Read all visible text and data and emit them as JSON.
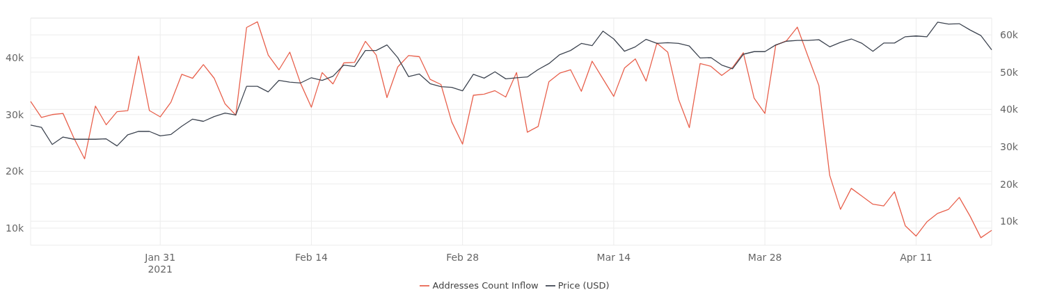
{
  "chart_data": {
    "type": "line",
    "x": [
      "2021-01-19",
      "2021-01-20",
      "2021-01-21",
      "2021-01-22",
      "2021-01-23",
      "2021-01-24",
      "2021-01-25",
      "2021-01-26",
      "2021-01-27",
      "2021-01-28",
      "2021-01-29",
      "2021-01-30",
      "2021-01-31",
      "2021-02-01",
      "2021-02-02",
      "2021-02-03",
      "2021-02-04",
      "2021-02-05",
      "2021-02-06",
      "2021-02-07",
      "2021-02-08",
      "2021-02-09",
      "2021-02-10",
      "2021-02-11",
      "2021-02-12",
      "2021-02-13",
      "2021-02-14",
      "2021-02-15",
      "2021-02-16",
      "2021-02-17",
      "2021-02-18",
      "2021-02-19",
      "2021-02-20",
      "2021-02-21",
      "2021-02-22",
      "2021-02-23",
      "2021-02-24",
      "2021-02-25",
      "2021-02-26",
      "2021-02-27",
      "2021-02-28",
      "2021-03-01",
      "2021-03-02",
      "2021-03-03",
      "2021-03-04",
      "2021-03-05",
      "2021-03-06",
      "2021-03-07",
      "2021-03-08",
      "2021-03-09",
      "2021-03-10",
      "2021-03-11",
      "2021-03-12",
      "2021-03-13",
      "2021-03-14",
      "2021-03-15",
      "2021-03-16",
      "2021-03-17",
      "2021-03-18",
      "2021-03-19",
      "2021-03-20",
      "2021-03-21",
      "2021-03-22",
      "2021-03-23",
      "2021-03-24",
      "2021-03-25",
      "2021-03-26",
      "2021-03-27",
      "2021-03-28",
      "2021-03-29",
      "2021-03-30",
      "2021-03-31",
      "2021-04-01",
      "2021-04-02",
      "2021-04-03",
      "2021-04-04",
      "2021-04-05",
      "2021-04-06",
      "2021-04-07",
      "2021-04-08",
      "2021-04-09",
      "2021-04-10",
      "2021-04-11",
      "2021-04-12",
      "2021-04-13",
      "2021-04-14",
      "2021-04-15",
      "2021-04-16",
      "2021-04-17",
      "2021-04-18"
    ],
    "series": [
      {
        "name": "Addresses Count Inflow",
        "color": "#e8604c",
        "values": [
          32300,
          29500,
          30000,
          30200,
          25900,
          22200,
          31500,
          28200,
          30500,
          30700,
          40300,
          30700,
          29600,
          32200,
          37100,
          36400,
          38800,
          36400,
          31900,
          29900,
          45350,
          46350,
          40500,
          37900,
          41000,
          35500,
          31300,
          37400,
          35400,
          39100,
          39200,
          42900,
          40500,
          33000,
          38400,
          40400,
          40200,
          36200,
          35300,
          28700,
          24800,
          33400,
          33600,
          34200,
          33100,
          37400,
          26900,
          27900,
          35800,
          37300,
          37900,
          34100,
          39400,
          36300,
          33200,
          38200,
          39800,
          35900,
          42600,
          41000,
          32700,
          27700,
          39000,
          38500,
          36900,
          38300,
          40900,
          32900,
          30200,
          42200,
          43000,
          45400,
          40200,
          35100,
          19300,
          13300,
          17000,
          15600,
          14200,
          13900,
          16400,
          10400,
          8600,
          11100,
          12600,
          13300,
          15400,
          12100,
          8300,
          9600
        ]
      },
      {
        "name": "Price (USD)",
        "color": "#3d4450",
        "axis": "y2",
        "values": [
          35800,
          35200,
          30600,
          32600,
          32000,
          32000,
          32000,
          32100,
          30200,
          33200,
          34100,
          34100,
          32900,
          33300,
          35500,
          37400,
          36800,
          38100,
          39000,
          38500,
          46200,
          46200,
          44700,
          47800,
          47300,
          47100,
          48500,
          47800,
          48900,
          51900,
          51500,
          55800,
          55800,
          57300,
          53900,
          48800,
          49500,
          46900,
          46100,
          45900,
          45000,
          49400,
          48400,
          50100,
          48200,
          48500,
          48700,
          50700,
          52300,
          54700,
          55800,
          57700,
          57100,
          61000,
          58900,
          55600,
          56800,
          58800,
          57700,
          57900,
          57700,
          57000,
          53800,
          53900,
          51900,
          50900,
          54800,
          55500,
          55500,
          57300,
          58300,
          58500,
          58500,
          58700,
          56800,
          58000,
          58900,
          57700,
          55600,
          57800,
          57800,
          59500,
          59700,
          59500,
          63400,
          62900,
          63000,
          61300,
          59800,
          56000
        ]
      }
    ],
    "xlim": [
      "2021-01-19",
      "2021-04-18"
    ],
    "xticks": [
      {
        "value": "2021-01-31",
        "label": "Jan 31\n2021"
      },
      {
        "value": "2021-02-14",
        "label": "Feb 14"
      },
      {
        "value": "2021-02-28",
        "label": "Feb 28"
      },
      {
        "value": "2021-03-14",
        "label": "Mar 14"
      },
      {
        "value": "2021-03-28",
        "label": "Mar 28"
      },
      {
        "value": "2021-04-11",
        "label": "Apr 11"
      }
    ],
    "ylim": [
      7000,
      47000
    ],
    "yticks": [
      {
        "value": 10000,
        "label": "10k"
      },
      {
        "value": 20000,
        "label": "20k"
      },
      {
        "value": 30000,
        "label": "30k"
      },
      {
        "value": 40000,
        "label": "40k"
      }
    ],
    "y2lim": [
      3600,
      64500
    ],
    "y2ticks": [
      {
        "value": 10000,
        "label": "10k"
      },
      {
        "value": 20000,
        "label": "20k"
      },
      {
        "value": 30000,
        "label": "30k"
      },
      {
        "value": 40000,
        "label": "40k"
      },
      {
        "value": 50000,
        "label": "50k"
      },
      {
        "value": 60000,
        "label": "60k"
      }
    ],
    "grid": true,
    "legend": "bottom",
    "line_style": "solid",
    "marker": "none"
  }
}
